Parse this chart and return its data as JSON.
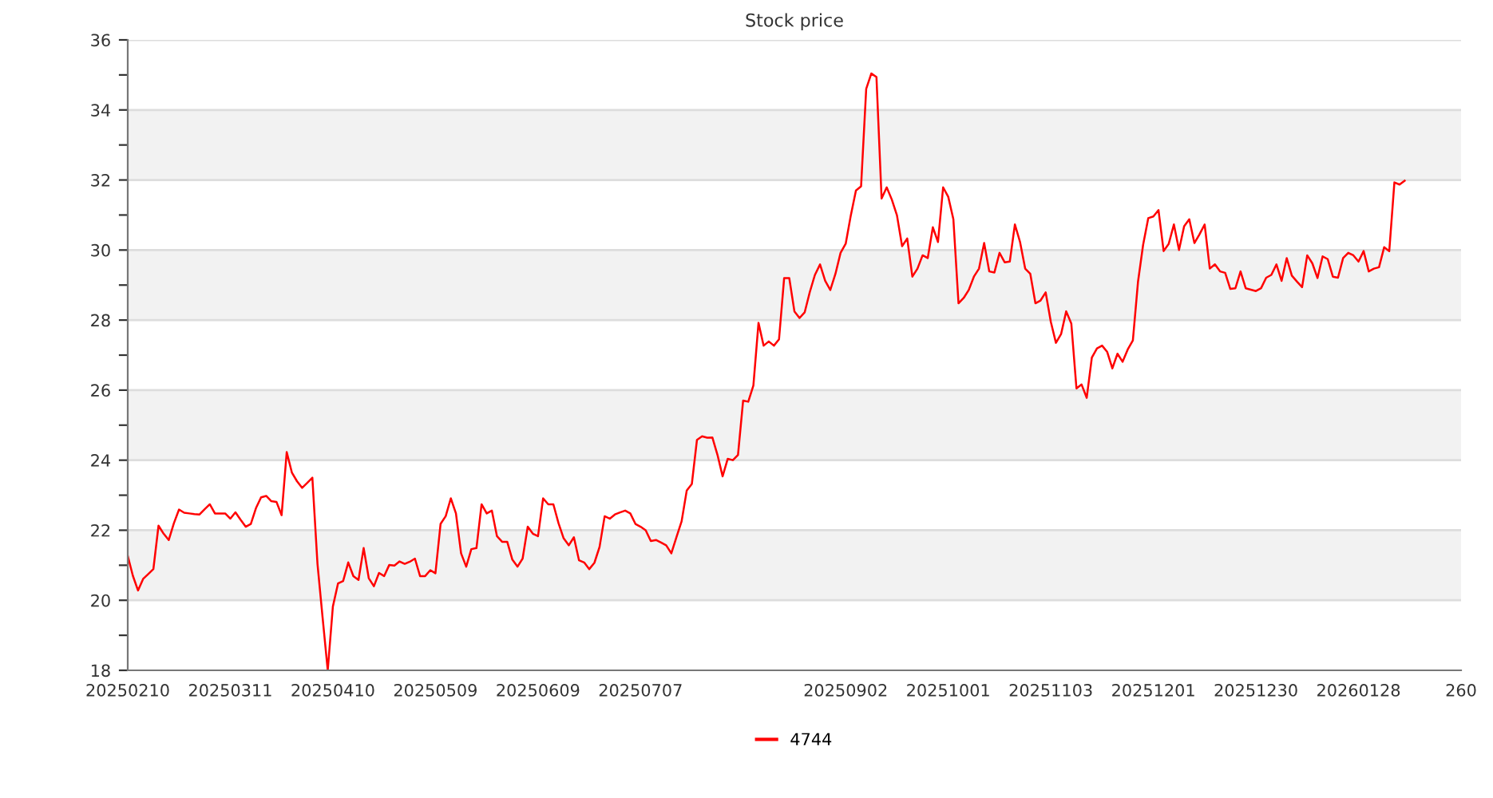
{
  "chart_data": {
    "type": "line",
    "title": "Stock price",
    "categories": [
      "20250210",
      null,
      null,
      null,
      null,
      null,
      null,
      null,
      null,
      null,
      null,
      null,
      null,
      null,
      null,
      null,
      null,
      null,
      null,
      null,
      "20250311",
      null,
      null,
      null,
      null,
      null,
      null,
      null,
      null,
      null,
      null,
      null,
      null,
      null,
      null,
      null,
      null,
      null,
      null,
      null,
      "20250410",
      null,
      null,
      null,
      null,
      null,
      null,
      null,
      null,
      null,
      null,
      null,
      null,
      null,
      null,
      null,
      null,
      null,
      null,
      null,
      "20250509",
      null,
      null,
      null,
      null,
      null,
      null,
      null,
      null,
      null,
      null,
      null,
      null,
      null,
      null,
      null,
      null,
      null,
      null,
      null,
      "20250609",
      null,
      null,
      null,
      null,
      null,
      null,
      null,
      null,
      null,
      null,
      null,
      null,
      null,
      null,
      null,
      null,
      null,
      null,
      null,
      "20250707",
      null,
      null,
      null,
      null,
      null,
      null,
      null,
      null,
      null,
      null,
      null,
      null,
      null,
      null,
      null,
      null,
      null,
      null,
      null,
      null,
      null,
      null,
      null,
      null,
      null,
      null,
      null,
      null,
      null,
      null,
      null,
      null,
      null,
      null,
      null,
      null,
      null,
      null,
      null,
      "20250902",
      null,
      null,
      null,
      null,
      null,
      null,
      null,
      null,
      null,
      null,
      null,
      null,
      null,
      null,
      null,
      null,
      null,
      null,
      null,
      "20251001",
      null,
      null,
      null,
      null,
      null,
      null,
      null,
      null,
      null,
      null,
      null,
      null,
      null,
      null,
      null,
      null,
      null,
      null,
      null,
      "20251103",
      null,
      null,
      null,
      null,
      null,
      null,
      null,
      null,
      null,
      null,
      null,
      null,
      null,
      null,
      null,
      null,
      null,
      null,
      null,
      "20251201",
      null,
      null,
      null,
      null,
      null,
      null,
      null,
      null,
      null,
      null,
      null,
      null,
      null,
      null,
      null,
      null,
      null,
      null,
      null,
      "20251230",
      null,
      null,
      null,
      null,
      null,
      null,
      null,
      null,
      null,
      null,
      null,
      null,
      null,
      null,
      null,
      null,
      null,
      null,
      null,
      "20260128",
      null,
      null,
      null,
      null,
      null,
      null,
      null,
      null,
      null,
      null,
      null,
      null,
      null,
      null,
      null,
      null,
      null,
      null,
      null,
      "260"
    ],
    "ylim": [
      18,
      36
    ],
    "yticks": [
      18,
      {
        "value": 19,
        "label": null
      },
      20,
      {
        "value": 21,
        "label": null
      },
      22,
      {
        "value": 23,
        "label": null
      },
      24,
      {
        "value": 25,
        "label": null
      },
      26,
      {
        "value": 27,
        "label": null
      },
      28,
      {
        "value": 29,
        "label": null
      },
      30,
      {
        "value": 31,
        "label": null
      },
      32,
      {
        "value": 33,
        "label": null
      },
      34,
      {
        "value": 35,
        "label": null
      },
      36
    ],
    "grid": "y",
    "legend": "bottom",
    "series": [
      {
        "name": "4744",
        "color": "#ff0000",
        "values": [
          21.27,
          20.7,
          20.28,
          20.61,
          20.75,
          20.89,
          22.13,
          21.9,
          21.72,
          22.2,
          22.59,
          22.5,
          22.48,
          22.46,
          22.45,
          22.6,
          22.74,
          22.48,
          22.48,
          22.48,
          22.33,
          22.51,
          22.3,
          22.1,
          22.18,
          22.63,
          22.94,
          22.98,
          22.83,
          22.81,
          22.43,
          24.23,
          23.65,
          23.4,
          23.21,
          23.35,
          23.5,
          21.04,
          19.5,
          18.0,
          19.82,
          20.48,
          20.55,
          21.08,
          20.69,
          20.58,
          21.49,
          20.63,
          20.4,
          20.78,
          20.69,
          21.01,
          20.99,
          21.11,
          21.04,
          21.1,
          21.19,
          20.69,
          20.69,
          20.86,
          20.77,
          22.18,
          22.4,
          22.91,
          22.48,
          21.34,
          20.96,
          21.46,
          21.49,
          22.74,
          22.48,
          22.56,
          21.83,
          21.67,
          21.67,
          21.16,
          20.96,
          21.19,
          22.1,
          21.9,
          21.83,
          22.91,
          22.74,
          22.74,
          22.2,
          21.77,
          21.57,
          21.8,
          21.14,
          21.08,
          20.89,
          21.07,
          21.52,
          22.4,
          22.33,
          22.45,
          22.51,
          22.56,
          22.48,
          22.18,
          22.1,
          22.0,
          21.69,
          21.72,
          21.65,
          21.57,
          21.34,
          21.8,
          22.25,
          23.13,
          23.32,
          24.58,
          24.68,
          24.64,
          24.65,
          24.15,
          23.54,
          24.04,
          24.0,
          24.15,
          25.7,
          25.67,
          26.13,
          27.92,
          27.27,
          27.39,
          27.27,
          27.45,
          29.2,
          29.2,
          28.25,
          28.06,
          28.22,
          28.8,
          29.29,
          29.59,
          29.12,
          28.86,
          29.32,
          29.92,
          30.18,
          30.99,
          31.7,
          31.82,
          34.6,
          35.04,
          34.94,
          31.47,
          31.79,
          31.44,
          30.99,
          30.11,
          30.33,
          29.24,
          29.47,
          29.85,
          29.77,
          30.65,
          30.23,
          31.79,
          31.52,
          30.88,
          28.48,
          28.63,
          28.86,
          29.24,
          29.47,
          30.2,
          29.39,
          29.36,
          29.92,
          29.65,
          29.67,
          30.73,
          30.23,
          29.47,
          29.32,
          28.48,
          28.56,
          28.79,
          27.95,
          27.35,
          27.6,
          28.25,
          27.9,
          26.05,
          26.16,
          25.78,
          26.93,
          27.19,
          27.27,
          27.09,
          26.62,
          27.04,
          26.81,
          27.16,
          27.42,
          29.09,
          30.15,
          30.91,
          30.96,
          31.14,
          29.97,
          30.18,
          30.73,
          30.0,
          30.68,
          30.88,
          30.2,
          30.45,
          30.73,
          29.47,
          29.59,
          29.39,
          29.35,
          28.89,
          28.91,
          29.39,
          28.91,
          28.87,
          28.83,
          28.91,
          29.21,
          29.29,
          29.59,
          29.12,
          29.77,
          29.27,
          29.1,
          28.94,
          29.85,
          29.62,
          29.2,
          29.82,
          29.74,
          29.24,
          29.21,
          29.77,
          29.92,
          29.85,
          29.67,
          29.97,
          29.39,
          29.47,
          29.51,
          30.08,
          29.97,
          31.93,
          31.87,
          31.98,
          null,
          null,
          null,
          null,
          null,
          null,
          null,
          null,
          null,
          null,
          null
        ]
      }
    ]
  }
}
